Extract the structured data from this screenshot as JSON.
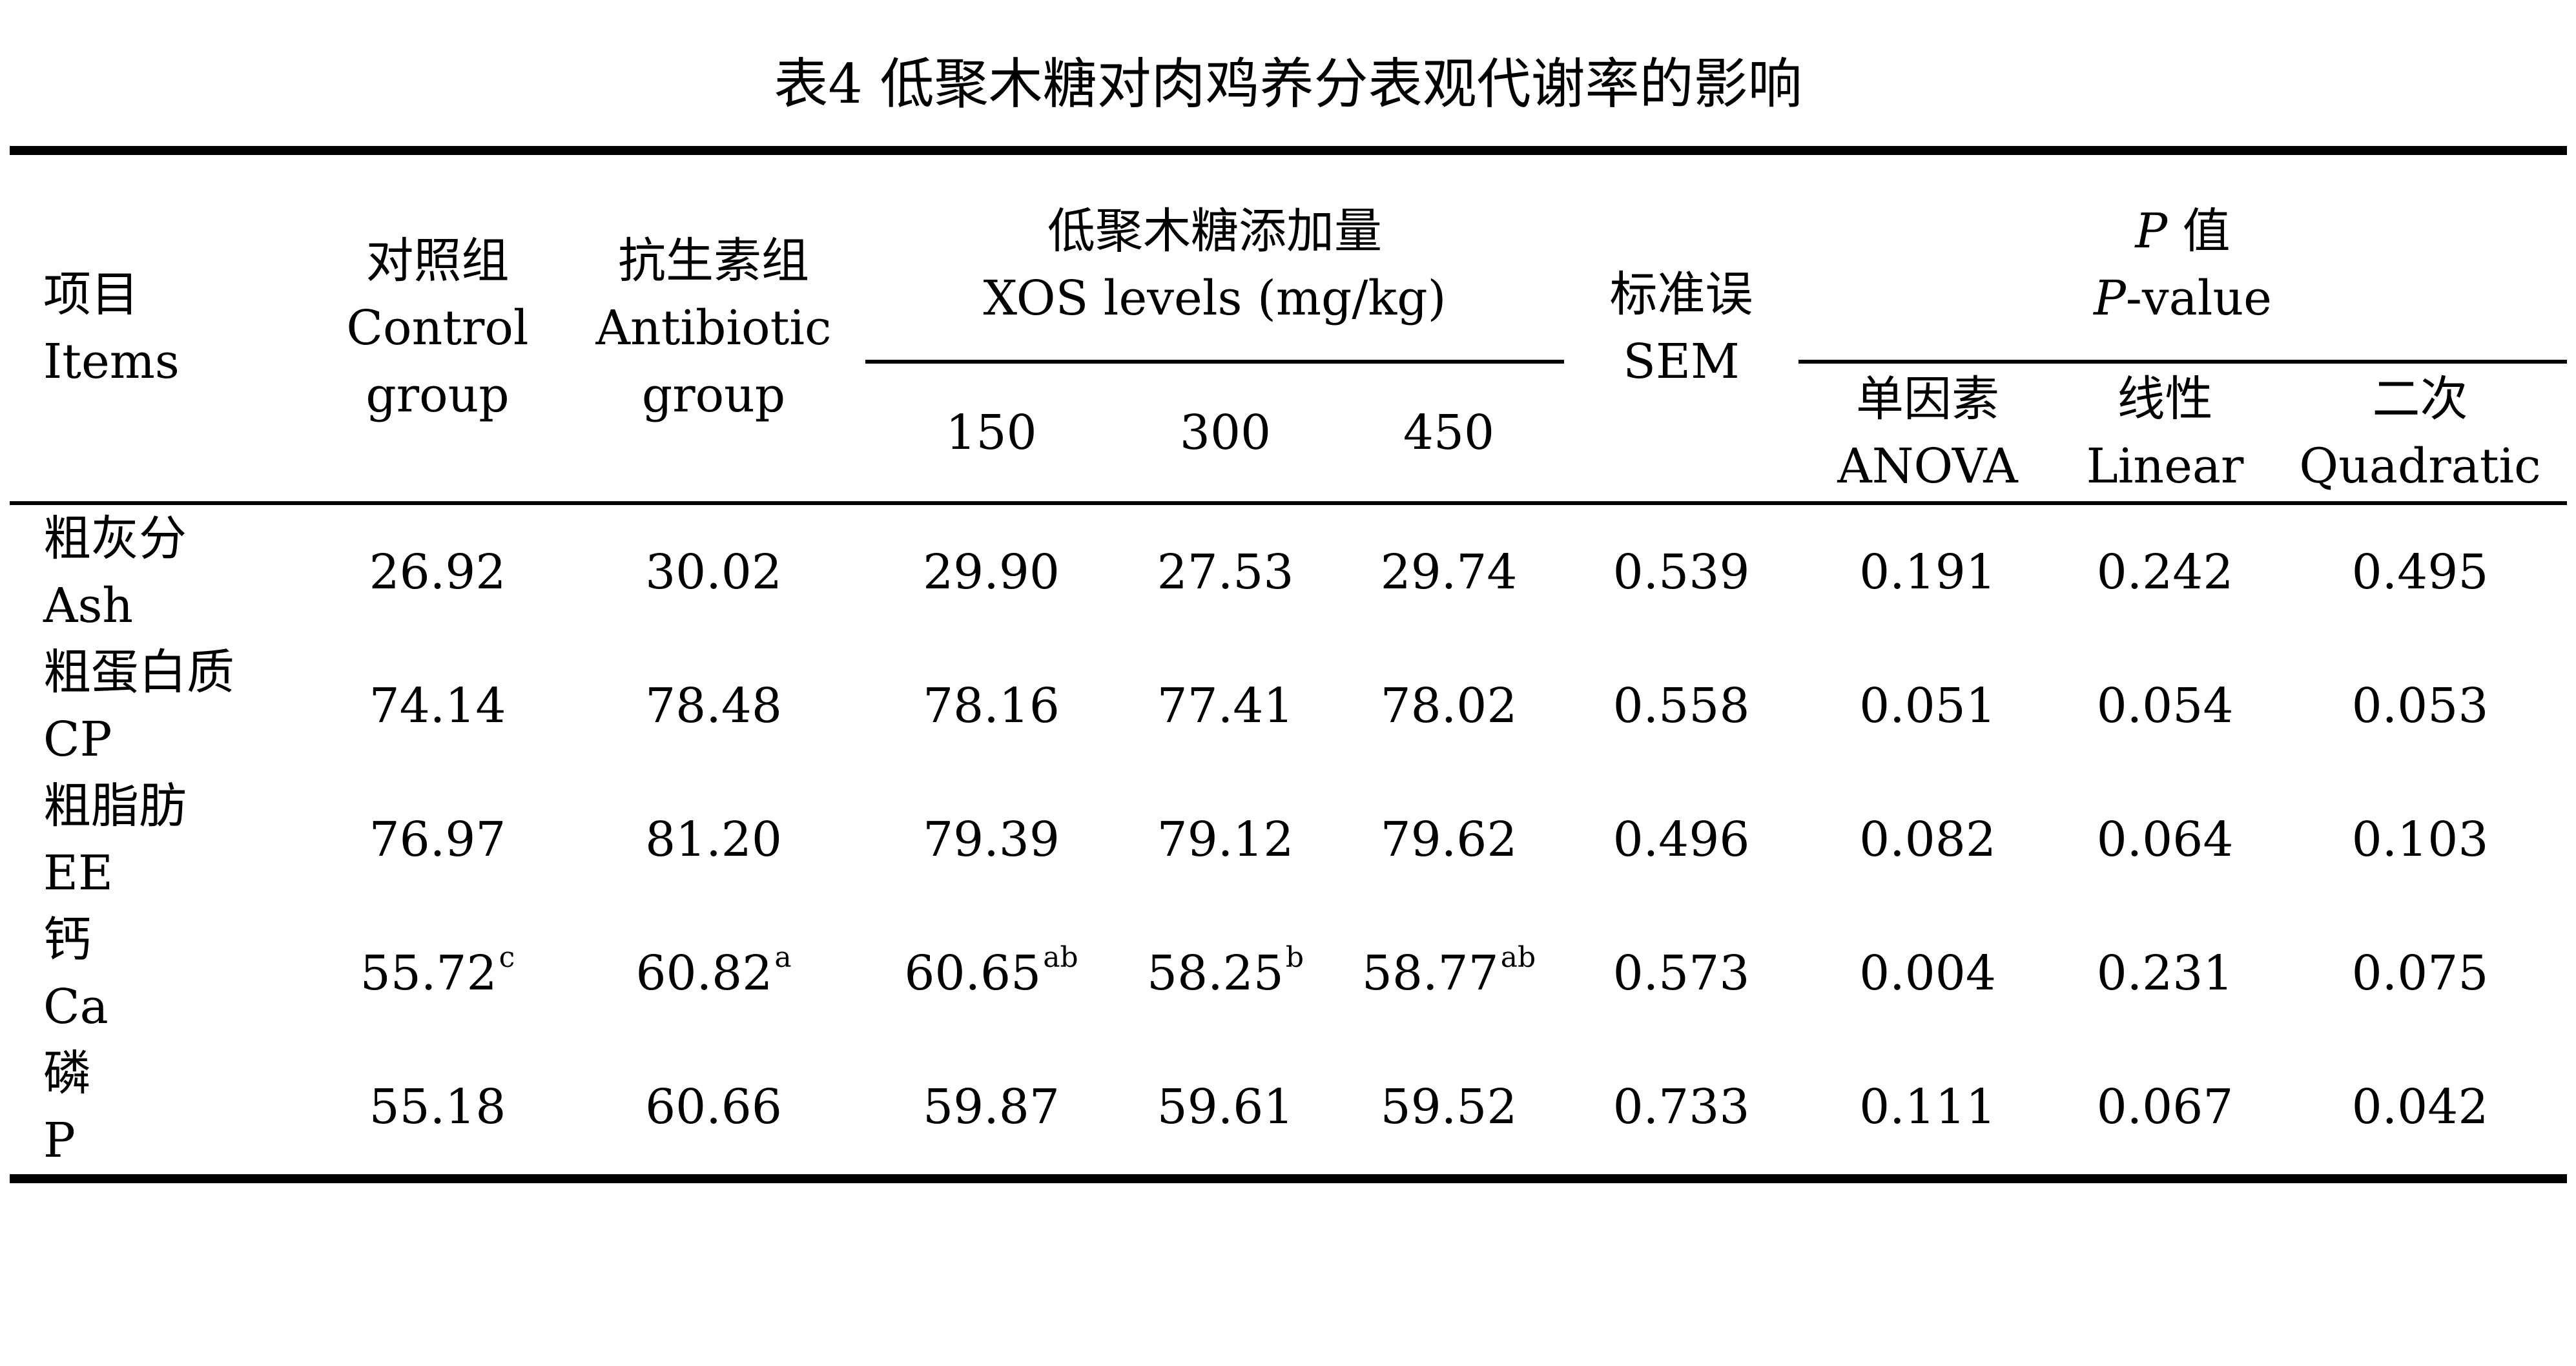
{
  "title": "表4 低聚木糖对肉鸡养分表观代谢率的影响",
  "header": {
    "items_cn": "项目",
    "items_en": "Items",
    "control_cn": "对照组",
    "control_en1": "Control",
    "control_en2": "group",
    "antibiotic_cn": "抗生素组",
    "antibiotic_en1": "Antibiotic",
    "antibiotic_en2": "group",
    "xos_cn": "低聚木糖添加量",
    "xos_en": "XOS levels (mg/kg)",
    "xos_levels": [
      "150",
      "300",
      "450"
    ],
    "sem_cn": "标准误",
    "sem_en": "SEM",
    "p_symbol": "P",
    "p_cn_suffix": " 值",
    "p_en_suffix": "-value",
    "anova_cn": "单因素",
    "anova_en": "ANOVA",
    "linear_cn": "线性",
    "linear_en": "Linear",
    "quadratic_cn": "二次",
    "quadratic_en": "Quadratic"
  },
  "rows": [
    {
      "item_cn": "粗灰分",
      "item_en": "Ash",
      "values": [
        {
          "v": "26.92",
          "sup": ""
        },
        {
          "v": "30.02",
          "sup": ""
        },
        {
          "v": "29.90",
          "sup": ""
        },
        {
          "v": "27.53",
          "sup": ""
        },
        {
          "v": "29.74",
          "sup": ""
        },
        {
          "v": "0.539",
          "sup": ""
        },
        {
          "v": "0.191",
          "sup": ""
        },
        {
          "v": "0.242",
          "sup": ""
        },
        {
          "v": "0.495",
          "sup": ""
        }
      ]
    },
    {
      "item_cn": "粗蛋白质",
      "item_en": "CP",
      "values": [
        {
          "v": "74.14",
          "sup": ""
        },
        {
          "v": "78.48",
          "sup": ""
        },
        {
          "v": "78.16",
          "sup": ""
        },
        {
          "v": "77.41",
          "sup": ""
        },
        {
          "v": "78.02",
          "sup": ""
        },
        {
          "v": "0.558",
          "sup": ""
        },
        {
          "v": "0.051",
          "sup": ""
        },
        {
          "v": "0.054",
          "sup": ""
        },
        {
          "v": "0.053",
          "sup": ""
        }
      ]
    },
    {
      "item_cn": "粗脂肪",
      "item_en": "EE",
      "values": [
        {
          "v": "76.97",
          "sup": ""
        },
        {
          "v": "81.20",
          "sup": ""
        },
        {
          "v": "79.39",
          "sup": ""
        },
        {
          "v": "79.12",
          "sup": ""
        },
        {
          "v": "79.62",
          "sup": ""
        },
        {
          "v": "0.496",
          "sup": ""
        },
        {
          "v": "0.082",
          "sup": ""
        },
        {
          "v": "0.064",
          "sup": ""
        },
        {
          "v": "0.103",
          "sup": ""
        }
      ]
    },
    {
      "item_cn": "钙",
      "item_en": "Ca",
      "values": [
        {
          "v": "55.72",
          "sup": "c"
        },
        {
          "v": "60.82",
          "sup": "a"
        },
        {
          "v": "60.65",
          "sup": "ab"
        },
        {
          "v": "58.25",
          "sup": "b"
        },
        {
          "v": "58.77",
          "sup": "ab"
        },
        {
          "v": "0.573",
          "sup": ""
        },
        {
          "v": "0.004",
          "sup": ""
        },
        {
          "v": "0.231",
          "sup": ""
        },
        {
          "v": "0.075",
          "sup": ""
        }
      ]
    },
    {
      "item_cn": "磷",
      "item_en": "P",
      "values": [
        {
          "v": "55.18",
          "sup": ""
        },
        {
          "v": "60.66",
          "sup": ""
        },
        {
          "v": "59.87",
          "sup": ""
        },
        {
          "v": "59.61",
          "sup": ""
        },
        {
          "v": "59.52",
          "sup": ""
        },
        {
          "v": "0.733",
          "sup": ""
        },
        {
          "v": "0.111",
          "sup": ""
        },
        {
          "v": "0.067",
          "sup": ""
        },
        {
          "v": "0.042",
          "sup": ""
        }
      ]
    }
  ]
}
